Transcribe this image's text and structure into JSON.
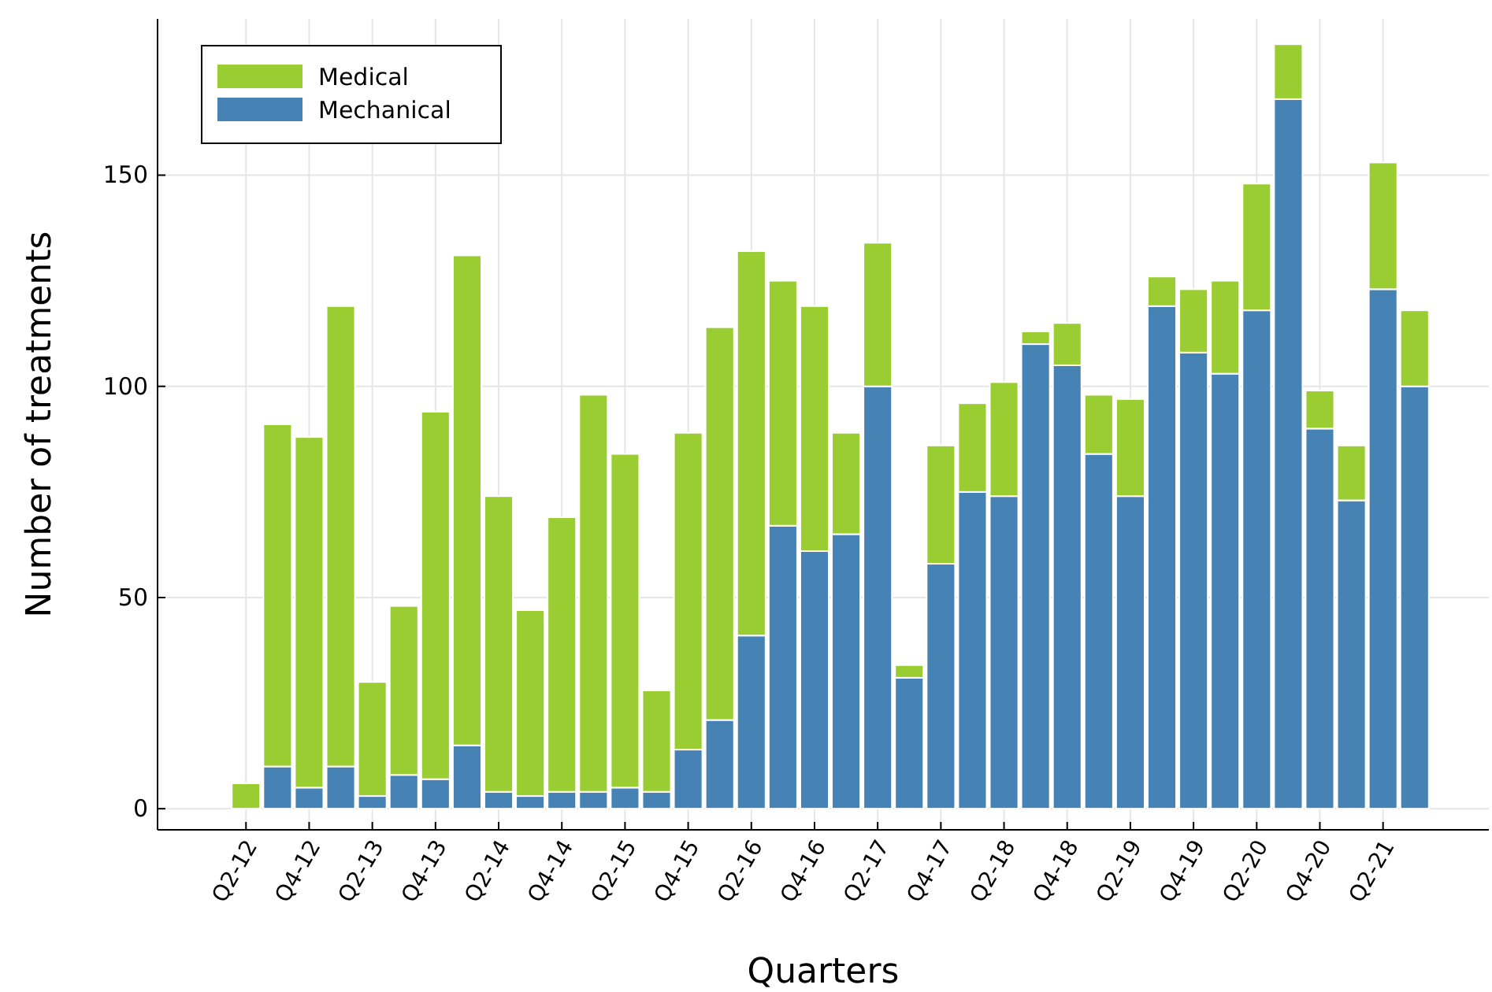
{
  "chart_data": {
    "type": "bar",
    "stacked": true,
    "xlabel": "Quarters",
    "ylabel": "Number of treatments",
    "categories": [
      "Q2-12",
      null,
      "Q4-12",
      null,
      "Q2-13",
      null,
      "Q4-13",
      null,
      "Q2-14",
      null,
      "Q4-14",
      null,
      "Q2-15",
      null,
      "Q4-15",
      null,
      "Q2-16",
      null,
      "Q4-16",
      null,
      "Q2-17",
      null,
      "Q4-17",
      null,
      "Q2-18",
      null,
      "Q4-18",
      null,
      "Q2-19",
      null,
      "Q4-19",
      null,
      "Q2-20",
      null,
      "Q4-20",
      null,
      "Q2-21",
      null
    ],
    "series": [
      {
        "name": "Mechanical",
        "color": "#4682b4",
        "values": [
          0,
          10,
          5,
          10,
          3,
          8,
          7,
          15,
          4,
          3,
          4,
          4,
          5,
          4,
          14,
          21,
          41,
          67,
          61,
          65,
          100,
          31,
          58,
          75,
          74,
          110,
          105,
          84,
          74,
          119,
          108,
          103,
          118,
          168,
          90,
          73,
          123,
          100
        ]
      },
      {
        "name": "Medical",
        "color": "#9acd32",
        "values": [
          6,
          81,
          83,
          109,
          27,
          40,
          87,
          116,
          70,
          44,
          65,
          94,
          79,
          24,
          75,
          93,
          91,
          58,
          58,
          24,
          34,
          3,
          28,
          21,
          27,
          3,
          10,
          14,
          23,
          7,
          15,
          22,
          30,
          13,
          9,
          13,
          30,
          18
        ]
      }
    ],
    "ylim": [
      -5,
      187
    ],
    "yticks": [
      0,
      50,
      100,
      150
    ],
    "grid": true,
    "legend": "top left"
  }
}
